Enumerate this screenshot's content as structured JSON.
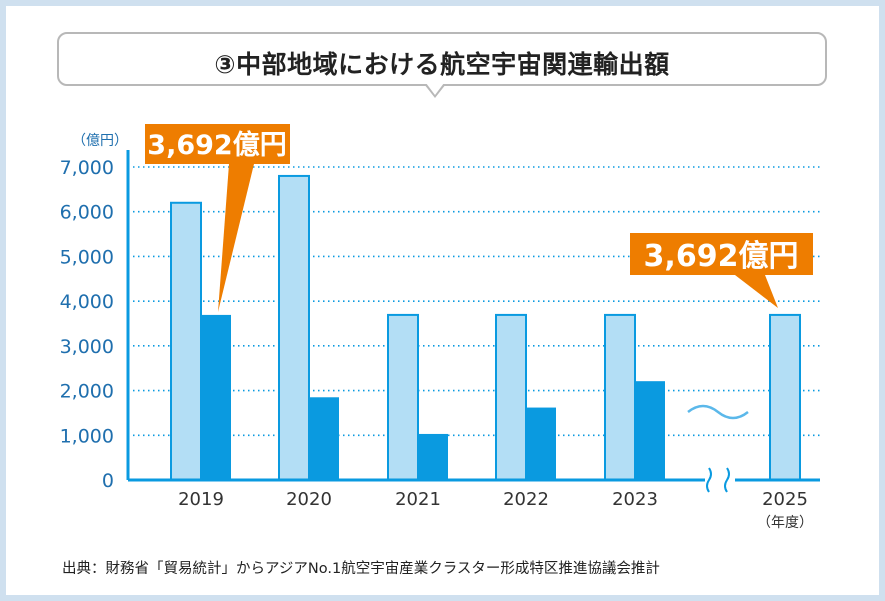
{
  "title": "③中部地域における航空宇宙関連輸出額",
  "source": "出典：財務省「貿易統計」からアジアNo.1航空宇宙産業クラスター形成特区推進協議会推計",
  "chart_data": {
    "type": "bar",
    "y_unit_label": "（億円）",
    "x_unit_label": "（年度）",
    "ylim": [
      0,
      7000
    ],
    "y_ticks": [
      0,
      1000,
      2000,
      3000,
      4000,
      5000,
      6000,
      7000
    ],
    "y_tick_labels": [
      "0",
      "1,000",
      "2,000",
      "3,000",
      "4,000",
      "5,000",
      "6,000",
      "7,000"
    ],
    "grid": "dotted",
    "categories": [
      "2019",
      "2020",
      "2021",
      "2022",
      "2023",
      "2025"
    ],
    "series": [
      {
        "values": [
          6200,
          6800,
          3692,
          3692,
          3692,
          3692
        ],
        "color": "#b3def5"
      },
      {
        "values": [
          3692,
          1850,
          1030,
          1620,
          2210,
          null
        ],
        "color": "#0a9ae0"
      }
    ],
    "axis_break_before": "2025",
    "annotations": [
      {
        "text": "3,692億円",
        "target_category": "2019",
        "target_series": 1
      },
      {
        "text": "3,692億円",
        "target_category": "2025",
        "target_series": 0
      }
    ],
    "colors": {
      "axis": "#0a9ae0",
      "tick_text": "#1f6fae",
      "callout": "#ee7d00",
      "callout_text": "#ffffff"
    }
  }
}
